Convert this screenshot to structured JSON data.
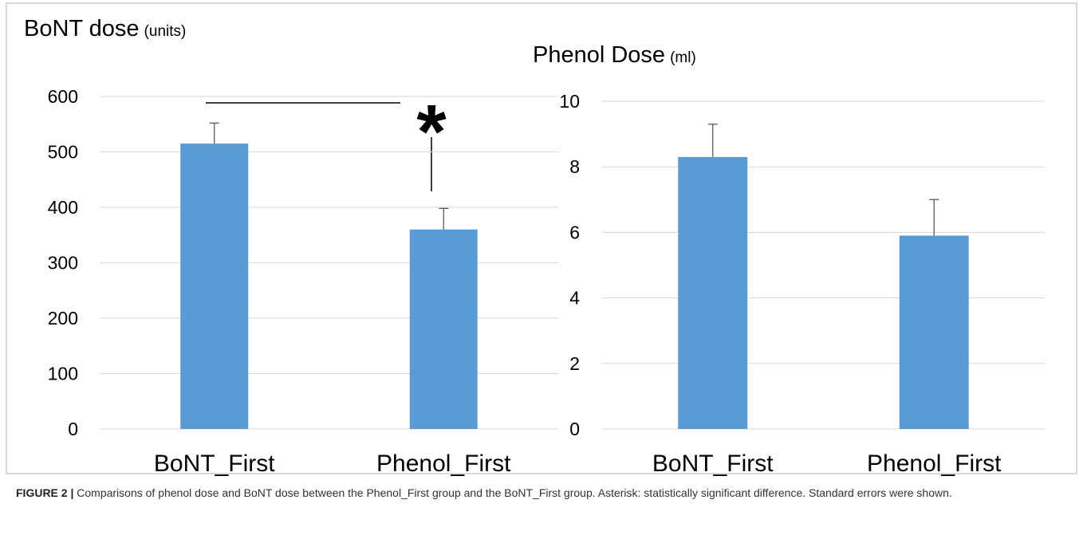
{
  "chart_data": [
    {
      "type": "bar",
      "title": "BoNT dose",
      "unit": "(units)",
      "categories": [
        "BoNT_First",
        "Phenol_First"
      ],
      "values": [
        515,
        360
      ],
      "errors": [
        37,
        38
      ],
      "color": "#5b9bd5",
      "ylim": [
        0,
        600
      ],
      "yticks": [
        0,
        100,
        200,
        300,
        400,
        500,
        600
      ],
      "grid": true,
      "annotation": "*"
    },
    {
      "type": "bar",
      "title": "Phenol Dose",
      "unit": "(ml)",
      "categories": [
        "BoNT_First",
        "Phenol_First"
      ],
      "values": [
        8.3,
        5.9
      ],
      "errors": [
        1.0,
        1.1
      ],
      "color": "#5b9bd5",
      "ylim": [
        0,
        10
      ],
      "yticks": [
        0,
        2,
        4,
        6,
        8,
        10
      ],
      "grid": true
    }
  ],
  "caption": {
    "label": "FIGURE 2 |",
    "text": "Comparisons of phenol dose and BoNT dose between the Phenol_First group and the BoNT_First group. Asterisk: statistically significant difference. Standard errors were shown."
  }
}
